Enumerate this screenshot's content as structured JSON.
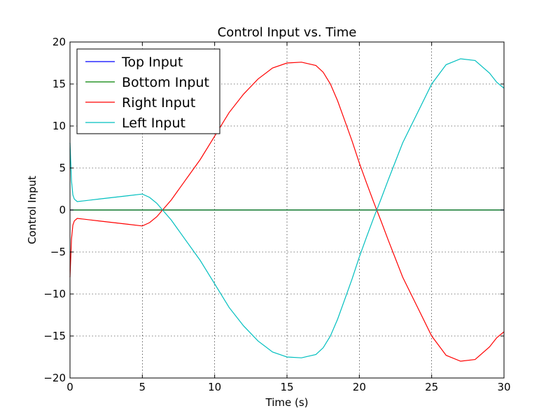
{
  "chart_data": {
    "type": "line",
    "title": "Control Input vs. Time",
    "xlabel": "Time (s)",
    "ylabel": "Control Input",
    "xlim": [
      0,
      30
    ],
    "ylim": [
      -20,
      20
    ],
    "xticks": [
      0,
      5,
      10,
      15,
      20,
      25,
      30
    ],
    "yticks": [
      -20,
      -15,
      -10,
      -5,
      0,
      5,
      10,
      15,
      20
    ],
    "xtick_labels": [
      "0",
      "5",
      "10",
      "15",
      "20",
      "25",
      "30"
    ],
    "ytick_labels": [
      "−20",
      "−15",
      "−10",
      "−5",
      "0",
      "5",
      "10",
      "15",
      "20"
    ],
    "grid": true,
    "legend_position": "top-left",
    "x": [
      0,
      0.1,
      0.2,
      0.3,
      0.5,
      1,
      2,
      3,
      4,
      5,
      5.5,
      6,
      6.5,
      7,
      8,
      9,
      10,
      11,
      12,
      13,
      14,
      15,
      16,
      17,
      17.5,
      18,
      18.5,
      19,
      19.5,
      20,
      20.5,
      21,
      21.5,
      22,
      22.5,
      23,
      24,
      25,
      26,
      27,
      28,
      29,
      29.5,
      30
    ],
    "series": [
      {
        "name": "Top Input",
        "color": "#0000ff",
        "values": [
          0,
          0,
          0,
          0,
          0,
          0,
          0,
          0,
          0,
          0,
          0,
          0,
          0,
          0,
          0,
          0,
          0,
          0,
          0,
          0,
          0,
          0,
          0,
          0,
          0,
          0,
          0,
          0,
          0,
          0,
          0,
          0,
          0,
          0,
          0,
          0,
          0,
          0,
          0,
          0,
          0,
          0,
          0,
          0
        ]
      },
      {
        "name": "Bottom Input",
        "color": "#008000",
        "values": [
          0,
          0,
          0,
          0,
          0,
          0,
          0,
          0,
          0,
          0,
          0,
          0,
          0,
          0,
          0,
          0,
          0,
          0,
          0,
          0,
          0,
          0,
          0,
          0,
          0,
          0,
          0,
          0,
          0,
          0,
          0,
          0,
          0,
          0,
          0,
          0,
          0,
          0,
          0,
          0,
          0,
          0,
          0,
          0
        ]
      },
      {
        "name": "Right Input",
        "color": "#ff0000",
        "values": [
          -8,
          -3.5,
          -1.8,
          -1.3,
          -1.0,
          -1.1,
          -1.3,
          -1.5,
          -1.7,
          -1.9,
          -1.5,
          -0.8,
          0.2,
          1.2,
          3.6,
          6.0,
          8.8,
          11.6,
          13.8,
          15.6,
          16.9,
          17.5,
          17.6,
          17.2,
          16.4,
          15.0,
          13.0,
          10.6,
          8.2,
          5.6,
          3.2,
          0.9,
          -1.3,
          -3.6,
          -5.8,
          -8.0,
          -11.5,
          -15.0,
          -17.3,
          -18.0,
          -17.8,
          -16.3,
          -15.2,
          -14.5
        ]
      },
      {
        "name": "Left Input",
        "color": "#00bfbf",
        "values": [
          8,
          3.5,
          1.8,
          1.3,
          1.0,
          1.1,
          1.3,
          1.5,
          1.7,
          1.9,
          1.5,
          0.8,
          -0.2,
          -1.2,
          -3.6,
          -6.0,
          -8.8,
          -11.6,
          -13.8,
          -15.6,
          -16.9,
          -17.5,
          -17.6,
          -17.2,
          -16.4,
          -15.0,
          -13.0,
          -10.6,
          -8.2,
          -5.6,
          -3.2,
          -0.9,
          1.3,
          3.6,
          5.8,
          8.0,
          11.5,
          15.0,
          17.3,
          18.0,
          17.8,
          16.3,
          15.2,
          14.5
        ]
      }
    ]
  }
}
